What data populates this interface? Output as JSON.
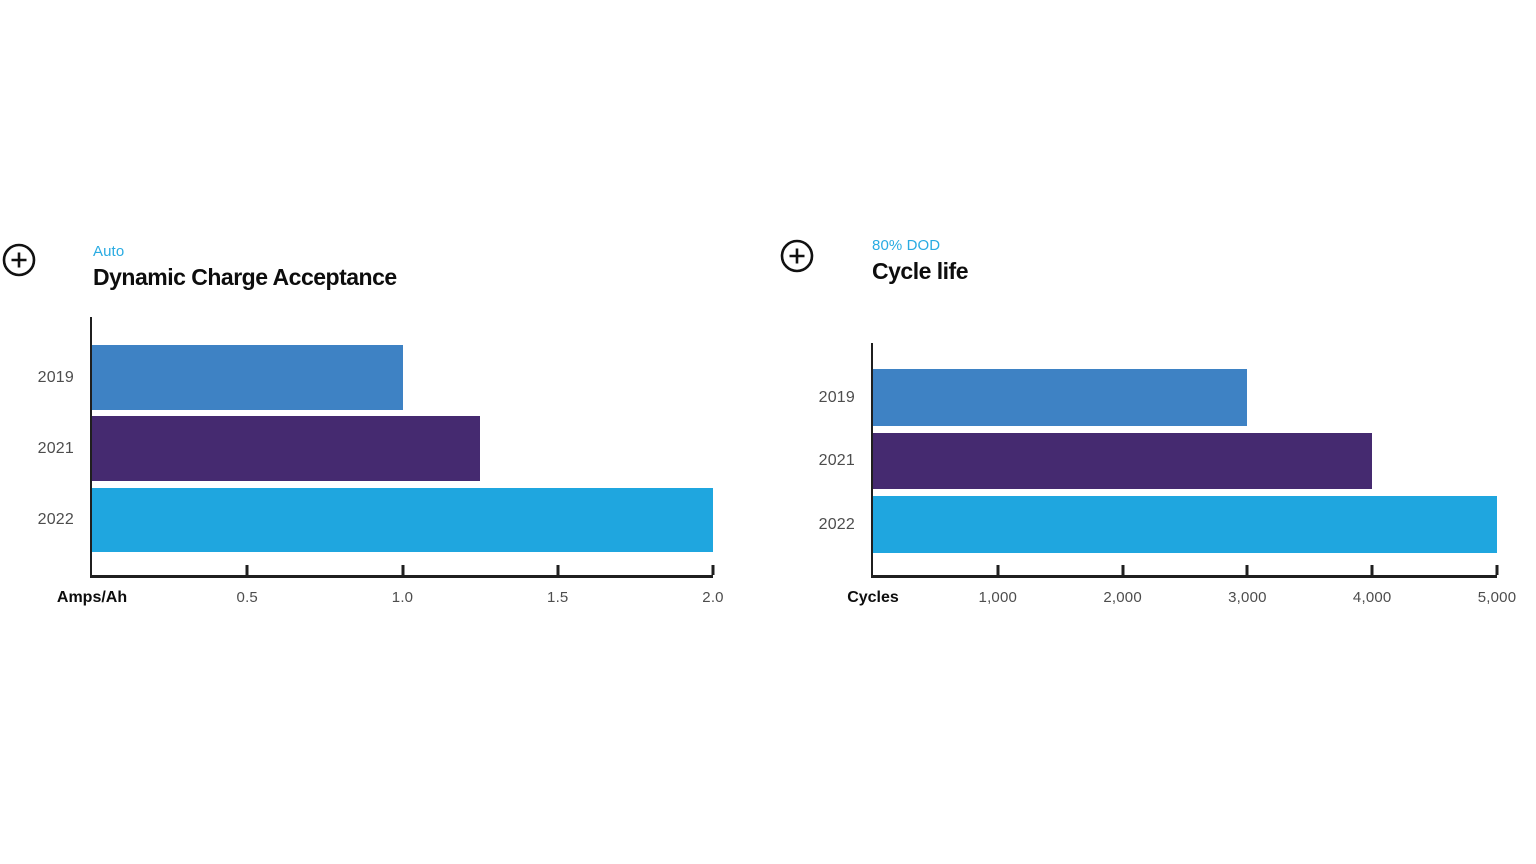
{
  "chart_data": [
    {
      "type": "bar",
      "orientation": "horizontal",
      "subtitle": "Auto",
      "title": "Dynamic Charge Acceptance",
      "categories": [
        "2019",
        "2021",
        "2022"
      ],
      "values": [
        1.0,
        1.25,
        2.0
      ],
      "xlabel": "Amps/Ah",
      "ylabel": "",
      "xlim": [
        0,
        2.0
      ],
      "xticks": [
        0.5,
        1.0,
        1.5,
        2.0
      ],
      "xtick_labels": [
        "0.5",
        "1.0",
        "1.5",
        "2.0"
      ],
      "bar_colors": [
        "#3E82C4",
        "#452A70",
        "#1FA6DF"
      ],
      "grid": false,
      "legend": null
    },
    {
      "type": "bar",
      "orientation": "horizontal",
      "subtitle": "80% DOD",
      "title": "Cycle life",
      "categories": [
        "2019",
        "2021",
        "2022"
      ],
      "values": [
        3000,
        4000,
        5000
      ],
      "xlabel": "Cycles",
      "ylabel": "",
      "xlim": [
        0,
        5000
      ],
      "xticks": [
        1000,
        2000,
        3000,
        4000,
        5000
      ],
      "xtick_labels": [
        "1,000",
        "2,000",
        "3,000",
        "4,000",
        "5,000"
      ],
      "bar_colors": [
        "#3E82C4",
        "#452A70",
        "#1FA6DF"
      ],
      "grid": false,
      "legend": null
    }
  ],
  "icons": {
    "expand": "plus-circle-icon"
  },
  "colors": {
    "subtitle_accent": "#29ABE2",
    "title_text": "#0D0D0D",
    "axis_line": "#1F1F1F",
    "category_label": "#4D4D4D",
    "tick_label": "#4D4D4D",
    "bar_2019": "#3E82C4",
    "bar_2021": "#452A70",
    "bar_2022": "#1FA6DF"
  }
}
